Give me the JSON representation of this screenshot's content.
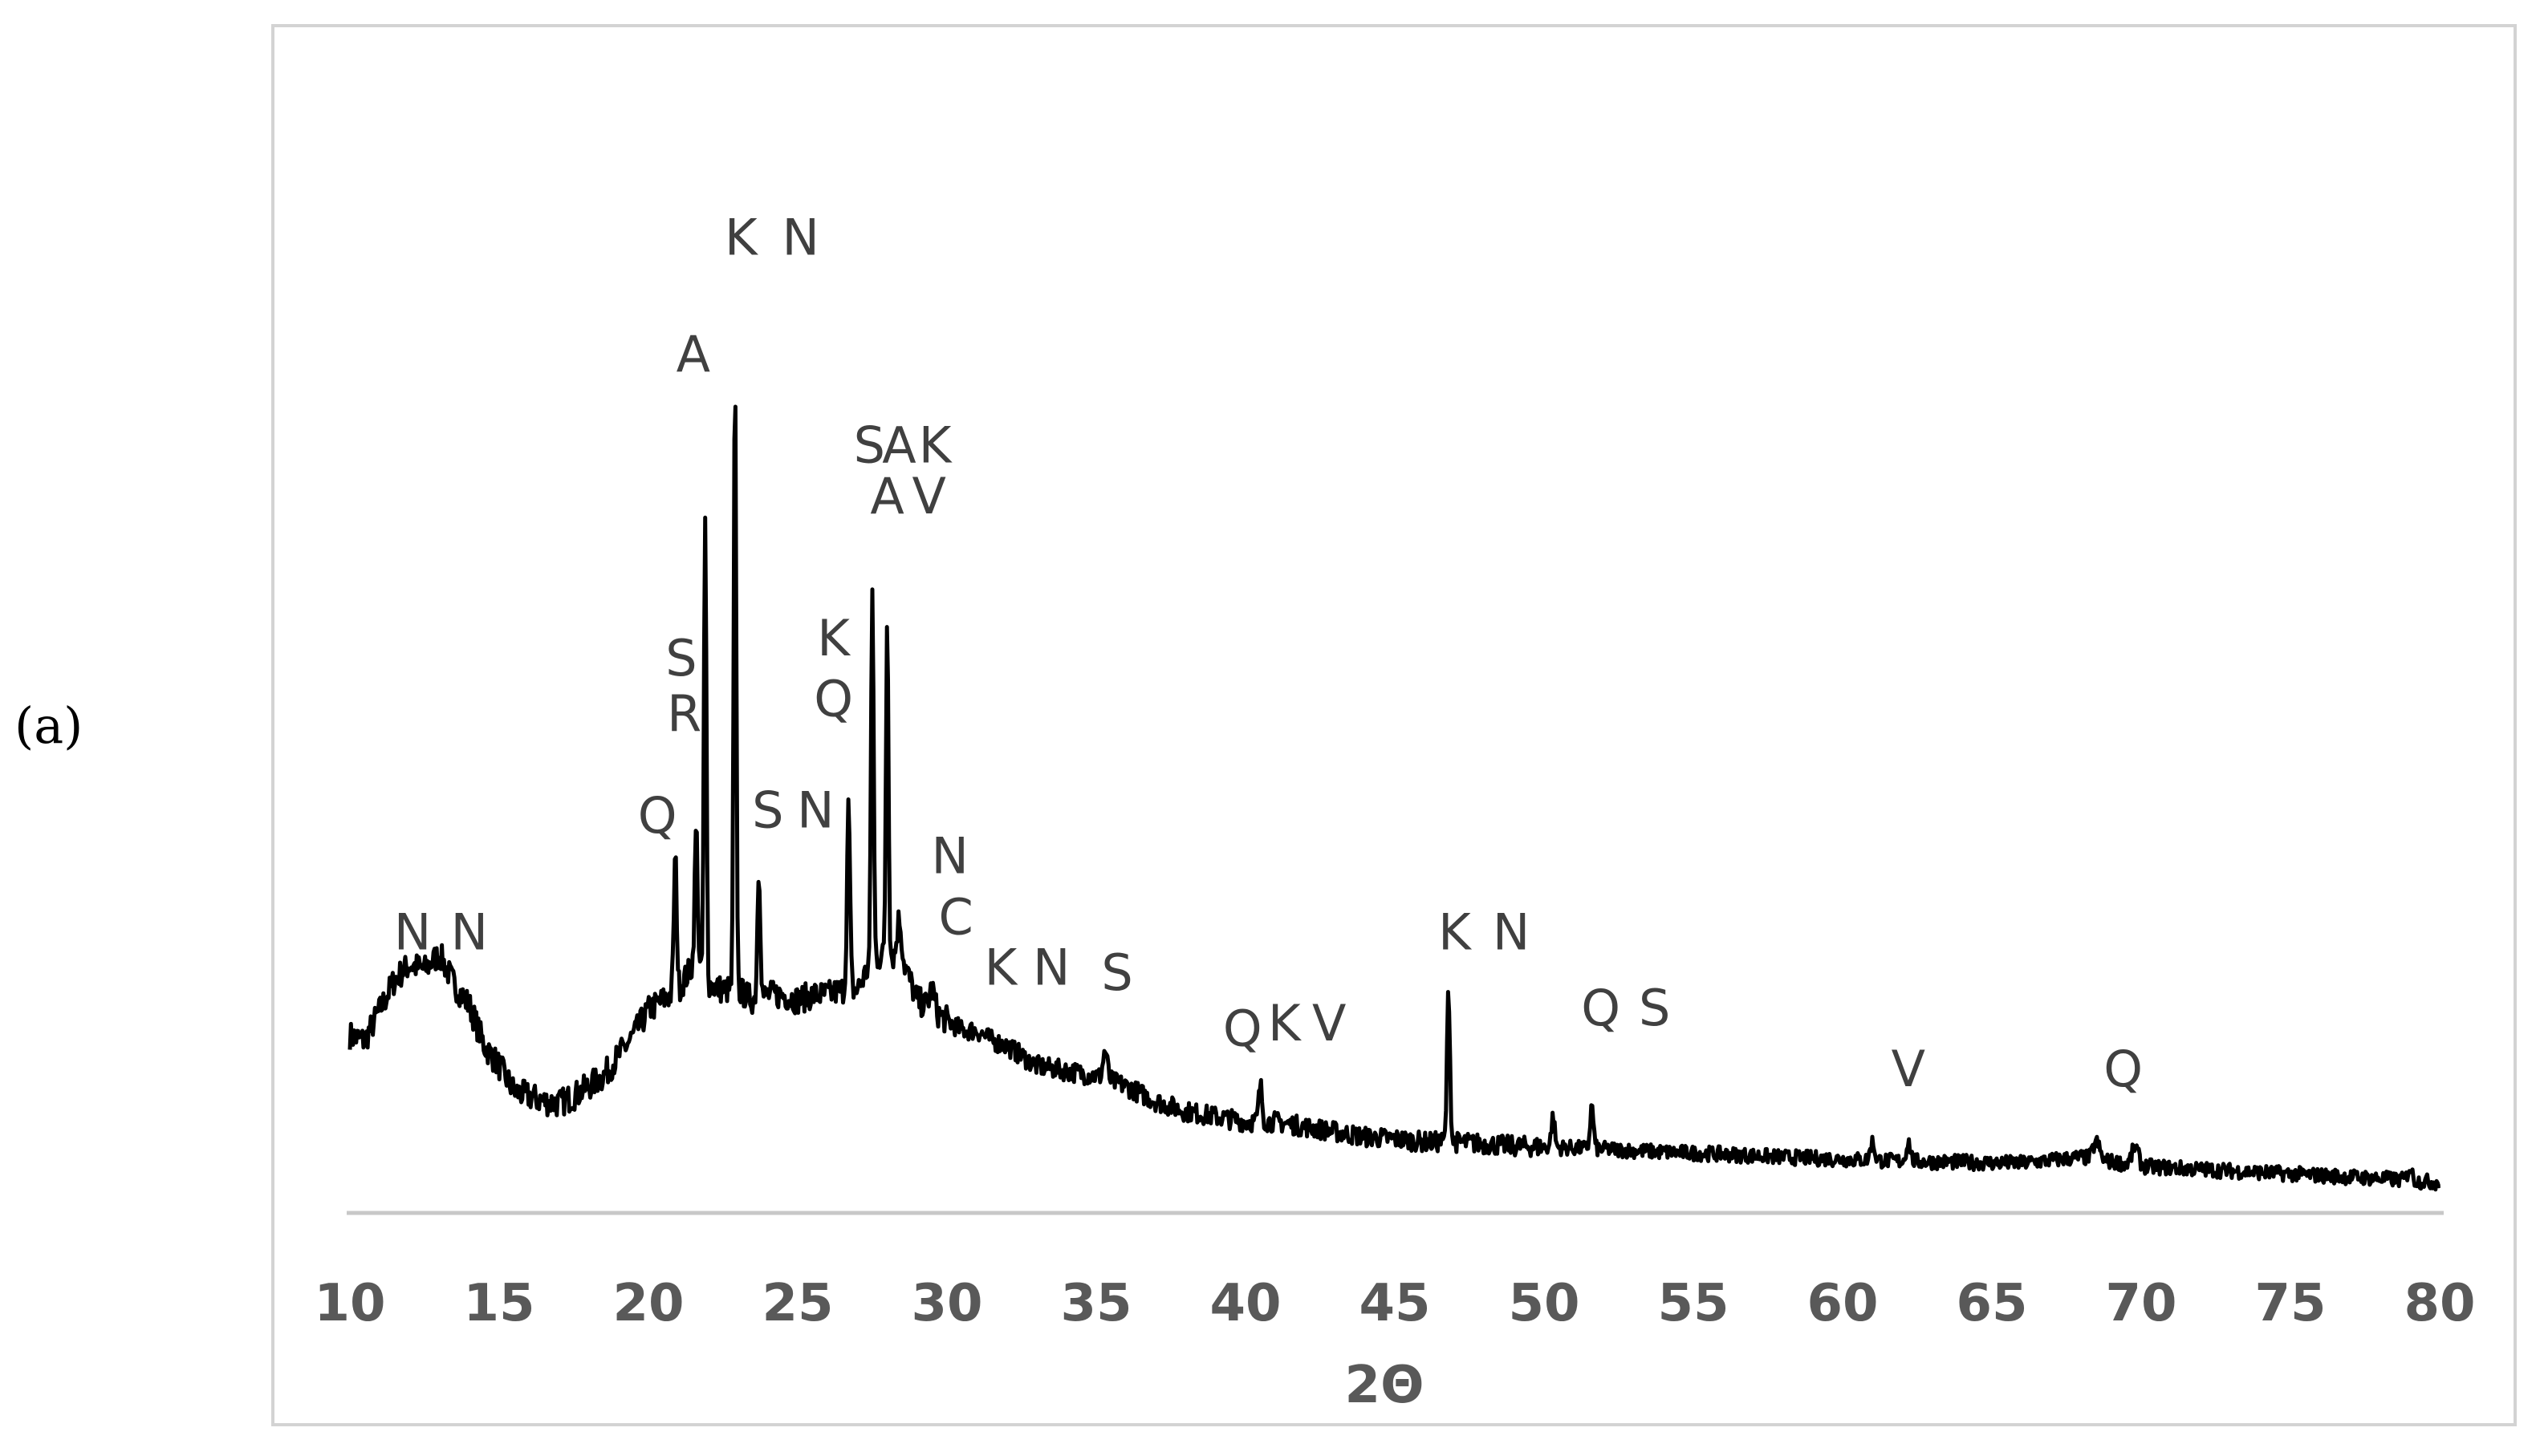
{
  "panel_label": "(a)",
  "chart_data": {
    "type": "line",
    "title": "",
    "xlabel": "2Θ",
    "ylabel": "",
    "xlim": [
      10,
      80
    ],
    "ylim": [
      0,
      100
    ],
    "xticks": [
      10,
      15,
      20,
      25,
      30,
      35,
      40,
      45,
      50,
      55,
      60,
      65,
      70,
      75,
      80
    ],
    "grid": false,
    "legend": "none",
    "colors": {
      "line": "#000000",
      "axis": "#c8c8c8",
      "text": "#595959",
      "annotation": "#404040"
    },
    "profile": [
      [
        10.0,
        17.5
      ],
      [
        10.5,
        17.0
      ],
      [
        11.0,
        20.0
      ],
      [
        11.5,
        23.0
      ],
      [
        12.0,
        24.5
      ],
      [
        12.5,
        24.0
      ],
      [
        13.0,
        25.5
      ],
      [
        13.5,
        22.5
      ],
      [
        14.0,
        20.5
      ],
      [
        14.5,
        16.5
      ],
      [
        15.0,
        14.5
      ],
      [
        15.5,
        12.0
      ],
      [
        16.0,
        11.5
      ],
      [
        16.5,
        11.0
      ],
      [
        17.0,
        10.8
      ],
      [
        17.5,
        11.5
      ],
      [
        18.0,
        12.5
      ],
      [
        18.5,
        13.5
      ],
      [
        19.0,
        15.5
      ],
      [
        19.5,
        17.5
      ],
      [
        20.0,
        20.0
      ],
      [
        20.5,
        21.0
      ],
      [
        21.0,
        22.0
      ],
      [
        21.5,
        24.5
      ],
      [
        22.0,
        22.5
      ],
      [
        22.5,
        22.0
      ],
      [
        23.0,
        22.0
      ],
      [
        23.5,
        21.0
      ],
      [
        24.0,
        21.5
      ],
      [
        24.5,
        21.5
      ],
      [
        25.0,
        21.0
      ],
      [
        25.5,
        21.5
      ],
      [
        26.0,
        21.5
      ],
      [
        26.5,
        22.0
      ],
      [
        27.0,
        22.0
      ],
      [
        27.5,
        25.0
      ],
      [
        28.0,
        25.5
      ],
      [
        28.5,
        25.0
      ],
      [
        29.0,
        21.0
      ],
      [
        29.5,
        20.0
      ],
      [
        30.0,
        19.0
      ],
      [
        30.5,
        18.0
      ],
      [
        31.0,
        18.0
      ],
      [
        31.5,
        17.0
      ],
      [
        32.0,
        16.5
      ],
      [
        32.5,
        15.5
      ],
      [
        33.0,
        14.5
      ],
      [
        34.0,
        14.0
      ],
      [
        35.0,
        13.5
      ],
      [
        36.0,
        12.5
      ],
      [
        37.0,
        11.0
      ],
      [
        38.0,
        10.0
      ],
      [
        39.0,
        9.5
      ],
      [
        40.0,
        9.0
      ],
      [
        41.0,
        9.0
      ],
      [
        42.0,
        8.5
      ],
      [
        43.0,
        8.0
      ],
      [
        44.0,
        7.5
      ],
      [
        45.0,
        7.3
      ],
      [
        46.0,
        7.0
      ],
      [
        47.0,
        7.0
      ],
      [
        48.0,
        6.8
      ],
      [
        49.0,
        6.6
      ],
      [
        50.0,
        6.5
      ],
      [
        52.0,
        6.3
      ],
      [
        54.0,
        6.0
      ],
      [
        56.0,
        5.8
      ],
      [
        58.0,
        5.5
      ],
      [
        60.0,
        5.3
      ],
      [
        62.0,
        5.1
      ],
      [
        64.0,
        5.0
      ],
      [
        66.0,
        4.9
      ],
      [
        68.0,
        5.5
      ],
      [
        70.0,
        4.6
      ],
      [
        72.0,
        4.3
      ],
      [
        74.0,
        4.0
      ],
      [
        76.0,
        3.7
      ],
      [
        78.0,
        3.4
      ],
      [
        80.0,
        3.0
      ]
    ],
    "peaks": [
      {
        "x": 20.9,
        "y": 35.0,
        "w": 0.07
      },
      {
        "x": 21.6,
        "y": 38.0,
        "w": 0.07
      },
      {
        "x": 21.9,
        "y": 68.0,
        "w": 0.06
      },
      {
        "x": 22.9,
        "y": 82.0,
        "w": 0.06
      },
      {
        "x": 23.7,
        "y": 34.0,
        "w": 0.07
      },
      {
        "x": 26.7,
        "y": 40.0,
        "w": 0.07
      },
      {
        "x": 27.5,
        "y": 62.0,
        "w": 0.06
      },
      {
        "x": 28.0,
        "y": 59.0,
        "w": 0.06
      },
      {
        "x": 28.4,
        "y": 29.0,
        "w": 0.1
      },
      {
        "x": 29.5,
        "y": 22.0,
        "w": 0.12
      },
      {
        "x": 35.3,
        "y": 16.0,
        "w": 0.1
      },
      {
        "x": 40.5,
        "y": 12.5,
        "w": 0.08
      },
      {
        "x": 46.8,
        "y": 22.0,
        "w": 0.07
      },
      {
        "x": 50.3,
        "y": 9.5,
        "w": 0.08
      },
      {
        "x": 51.6,
        "y": 10.5,
        "w": 0.08
      },
      {
        "x": 61.0,
        "y": 7.0,
        "w": 0.1
      },
      {
        "x": 62.2,
        "y": 7.0,
        "w": 0.1
      },
      {
        "x": 68.5,
        "y": 7.0,
        "w": 0.15
      },
      {
        "x": 69.8,
        "y": 6.5,
        "w": 0.15
      },
      {
        "x": 79.0,
        "y": 4.5,
        "w": 0.1
      }
    ],
    "annotations": [
      {
        "text": "N",
        "x": 12.1,
        "y": 26.0
      },
      {
        "text": "N",
        "x": 14.0,
        "y": 26.0
      },
      {
        "text": "Q",
        "x": 20.3,
        "y": 37.5
      },
      {
        "text": "R",
        "x": 21.2,
        "y": 47.5
      },
      {
        "text": "S",
        "x": 21.1,
        "y": 53.0
      },
      {
        "text": "A",
        "x": 21.5,
        "y": 83.0
      },
      {
        "text": "K",
        "x": 23.1,
        "y": 94.5
      },
      {
        "text": "N",
        "x": 25.1,
        "y": 94.5
      },
      {
        "text": "S",
        "x": 24.0,
        "y": 38.0
      },
      {
        "text": "N",
        "x": 25.6,
        "y": 38.0
      },
      {
        "text": "Q",
        "x": 26.2,
        "y": 49.0
      },
      {
        "text": "K",
        "x": 26.2,
        "y": 55.0
      },
      {
        "text": "S",
        "x": 27.4,
        "y": 74.0
      },
      {
        "text": "A",
        "x": 28.4,
        "y": 74.0
      },
      {
        "text": "K",
        "x": 29.6,
        "y": 74.0
      },
      {
        "text": "A",
        "x": 28.0,
        "y": 69.0
      },
      {
        "text": "V",
        "x": 29.4,
        "y": 69.0
      },
      {
        "text": "N",
        "x": 30.1,
        "y": 33.5
      },
      {
        "text": "C",
        "x": 30.3,
        "y": 27.5
      },
      {
        "text": "K",
        "x": 31.8,
        "y": 22.5
      },
      {
        "text": "N",
        "x": 33.5,
        "y": 22.5
      },
      {
        "text": "S",
        "x": 35.7,
        "y": 22.0
      },
      {
        "text": "Q",
        "x": 39.9,
        "y": 16.5
      },
      {
        "text": "K",
        "x": 41.3,
        "y": 17.0
      },
      {
        "text": "V",
        "x": 42.8,
        "y": 17.0
      },
      {
        "text": "K",
        "x": 47.0,
        "y": 26.0
      },
      {
        "text": "N",
        "x": 48.9,
        "y": 26.0
      },
      {
        "text": "Q",
        "x": 51.9,
        "y": 18.5
      },
      {
        "text": "S",
        "x": 53.7,
        "y": 18.5
      },
      {
        "text": "V",
        "x": 62.2,
        "y": 12.5
      },
      {
        "text": "Q",
        "x": 69.4,
        "y": 12.5
      }
    ]
  }
}
